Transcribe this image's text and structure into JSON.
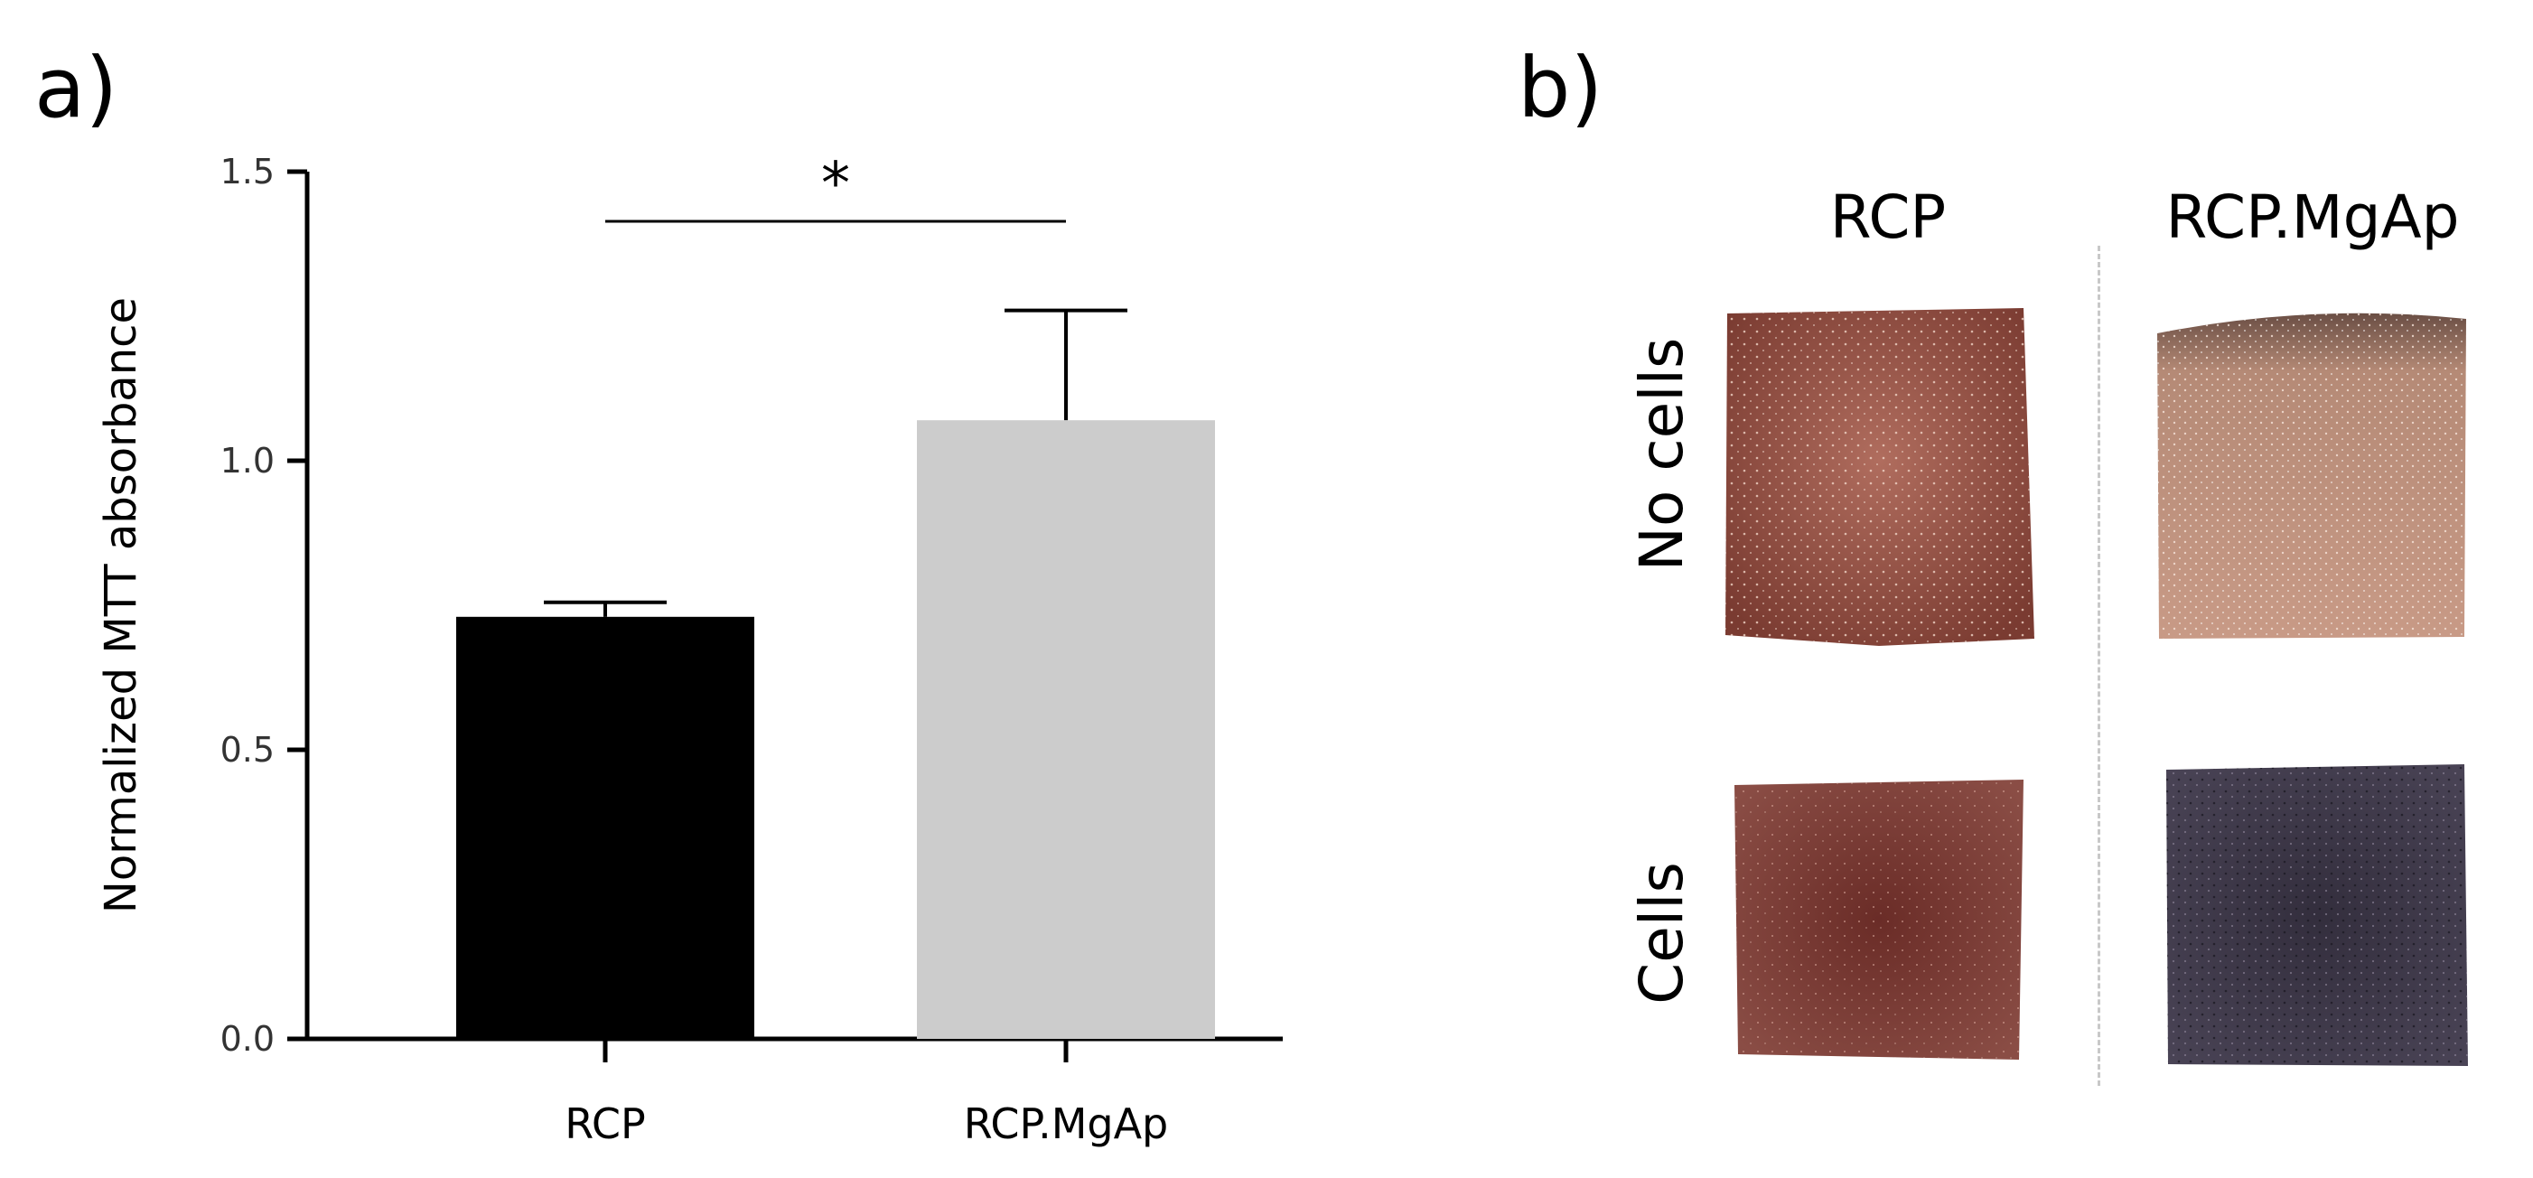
{
  "panel_a_label": "a)",
  "panel_b_label": "b)",
  "chart_data": {
    "type": "bar",
    "categories": [
      "RCP",
      "RCP.MgAp"
    ],
    "values": [
      0.73,
      1.07
    ],
    "errors": [
      0.025,
      0.19
    ],
    "bar_colors": [
      "#000000",
      "#cccccc"
    ],
    "ylabel": "Normalized MTT absorbance",
    "xlabel": "",
    "ylim": [
      0.0,
      1.5
    ],
    "yticks": [
      0.0,
      0.5,
      1.0,
      1.5
    ],
    "ytick_labels": [
      "0.0",
      "0.5",
      "1.0",
      "1.5"
    ],
    "grid": false,
    "significance": {
      "between": [
        "RCP",
        "RCP.MgAp"
      ],
      "label": "*"
    }
  },
  "photo_grid": {
    "columns": [
      "RCP",
      "RCP.MgAp"
    ],
    "rows": [
      "No cells",
      "Cells"
    ],
    "samples": [
      {
        "row": "No cells",
        "column": "RCP",
        "color": "#8b4a3e"
      },
      {
        "row": "No cells",
        "column": "RCP.MgAp",
        "color": "#b4806a"
      },
      {
        "row": "Cells",
        "column": "RCP",
        "color": "#5a2a26"
      },
      {
        "row": "Cells",
        "column": "RCP.MgAp",
        "color": "#3a3444"
      }
    ]
  }
}
